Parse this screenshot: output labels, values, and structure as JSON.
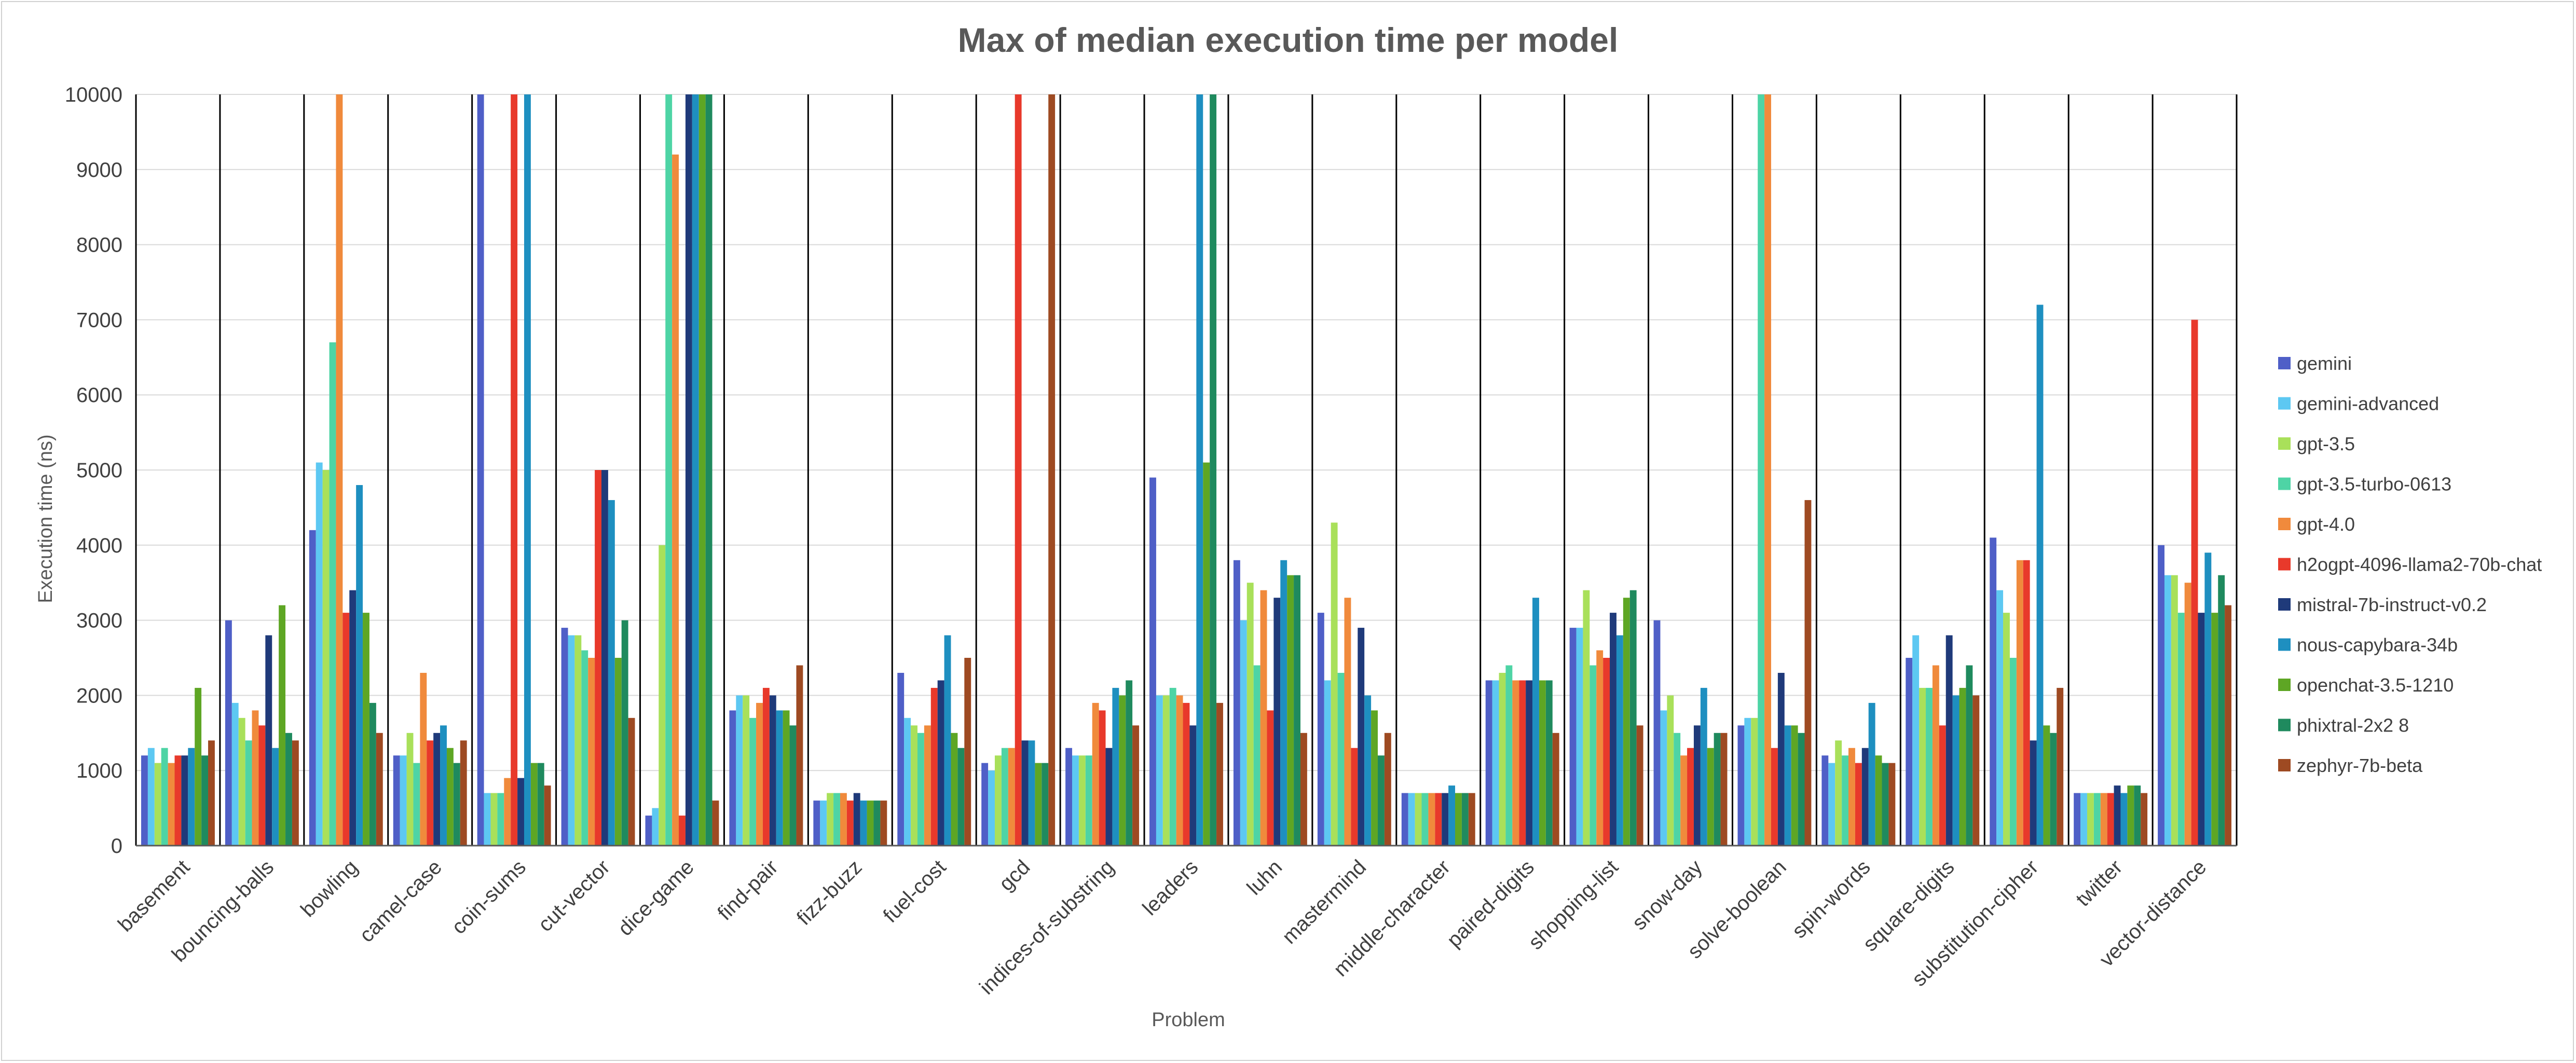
{
  "chart_data": {
    "type": "bar",
    "title": "Max of median execution time per model",
    "xlabel": "Problem",
    "ylabel": "Execution time (ns)",
    "ylim": [
      0,
      10000
    ],
    "yticks": [
      "0",
      "1000",
      "2000",
      "3000",
      "4000",
      "5000",
      "6000",
      "7000",
      "8000",
      "9000",
      "10000"
    ],
    "grid": true,
    "legend_position": "right",
    "categories": [
      "basement",
      "bouncing-balls",
      "bowling",
      "camel-case",
      "coin-sums",
      "cut-vector",
      "dice-game",
      "find-pair",
      "fizz-buzz",
      "fuel-cost",
      "gcd",
      "indices-of-substring",
      "leaders",
      "luhn",
      "mastermind",
      "middle-character",
      "paired-digits",
      "shopping-list",
      "snow-day",
      "solve-boolean",
      "spin-words",
      "square-digits",
      "substitution-cipher",
      "twitter",
      "vector-distance"
    ],
    "series": [
      {
        "name": "gemini",
        "color": "#4F5FC7",
        "values": [
          1200,
          3000,
          4200,
          1200,
          10000,
          2900,
          400,
          1800,
          600,
          2300,
          1100,
          1300,
          4900,
          3800,
          3100,
          700,
          2200,
          2900,
          3000,
          1600,
          1200,
          2500,
          4100,
          700,
          4000
        ]
      },
      {
        "name": "gemini-advanced",
        "color": "#5DC8F2",
        "values": [
          1300,
          1900,
          5100,
          1200,
          700,
          2800,
          500,
          2000,
          600,
          1700,
          1000,
          1200,
          2000,
          3000,
          2200,
          700,
          2200,
          2900,
          1800,
          1700,
          1100,
          2800,
          3400,
          700,
          3600
        ]
      },
      {
        "name": "gpt-3.5",
        "color": "#A9E05A",
        "values": [
          1100,
          1700,
          5000,
          1500,
          700,
          2800,
          4000,
          2000,
          700,
          1600,
          1200,
          1200,
          2000,
          3500,
          4300,
          700,
          2300,
          3400,
          2000,
          1700,
          1400,
          2100,
          3100,
          700,
          3600
        ]
      },
      {
        "name": "gpt-3.5-turbo-0613",
        "color": "#4ED4A5",
        "values": [
          1300,
          1400,
          6700,
          1100,
          700,
          2600,
          10000,
          1700,
          700,
          1500,
          1300,
          1200,
          2100,
          2400,
          2300,
          700,
          2400,
          2400,
          1500,
          10000,
          1200,
          2100,
          2500,
          700,
          3100
        ]
      },
      {
        "name": "gpt-4.0",
        "color": "#F08A3C",
        "values": [
          1100,
          1800,
          10000,
          2300,
          900,
          2500,
          9200,
          1900,
          700,
          1600,
          1300,
          1900,
          2000,
          3400,
          3300,
          700,
          2200,
          2600,
          1200,
          10000,
          1300,
          2400,
          3800,
          700,
          3500
        ]
      },
      {
        "name": "h2ogpt-4096-llama2-70b-chat",
        "color": "#E8392B",
        "values": [
          1200,
          1600,
          3100,
          1400,
          10000,
          5000,
          400,
          2100,
          600,
          2100,
          10000,
          1800,
          1900,
          1800,
          1300,
          700,
          2200,
          2500,
          1300,
          1300,
          1100,
          1600,
          3800,
          700,
          7000
        ]
      },
      {
        "name": "mistral-7b-instruct-v0.2",
        "color": "#1F3A7A",
        "values": [
          1200,
          2800,
          3400,
          1500,
          900,
          5000,
          10000,
          2000,
          700,
          2200,
          1400,
          1300,
          1600,
          3300,
          2900,
          700,
          2200,
          3100,
          1600,
          2300,
          1300,
          2800,
          1400,
          800,
          3100
        ]
      },
      {
        "name": "nous-capybara-34b",
        "color": "#1E8FC0",
        "values": [
          1300,
          1300,
          4800,
          1600,
          10000,
          4600,
          10000,
          1800,
          600,
          2800,
          1400,
          2100,
          10000,
          3800,
          2000,
          800,
          3300,
          2800,
          2100,
          1600,
          1900,
          2000,
          7200,
          700,
          3900
        ]
      },
      {
        "name": "openchat-3.5-1210",
        "color": "#5EA624",
        "values": [
          2100,
          3200,
          3100,
          1300,
          1100,
          2500,
          10000,
          1800,
          600,
          1500,
          1100,
          2000,
          5100,
          3600,
          1800,
          700,
          2200,
          3300,
          1300,
          1600,
          1200,
          2100,
          1600,
          800,
          3100
        ]
      },
      {
        "name": "phixtral-2x2 8",
        "color": "#1F8A5E",
        "values": [
          1200,
          1500,
          1900,
          1100,
          1100,
          3000,
          10000,
          1600,
          600,
          1300,
          1100,
          2200,
          10000,
          3600,
          1200,
          700,
          2200,
          3400,
          1500,
          1500,
          1100,
          2400,
          1500,
          800,
          3600
        ]
      },
      {
        "name": "zephyr-7b-beta",
        "color": "#9E4A22",
        "values": [
          1400,
          1400,
          1500,
          1400,
          800,
          1700,
          600,
          2400,
          600,
          2500,
          10000,
          1600,
          1900,
          1500,
          1500,
          700,
          1500,
          1600,
          1500,
          4600,
          1100,
          2000,
          2100,
          700,
          3200
        ]
      }
    ]
  }
}
